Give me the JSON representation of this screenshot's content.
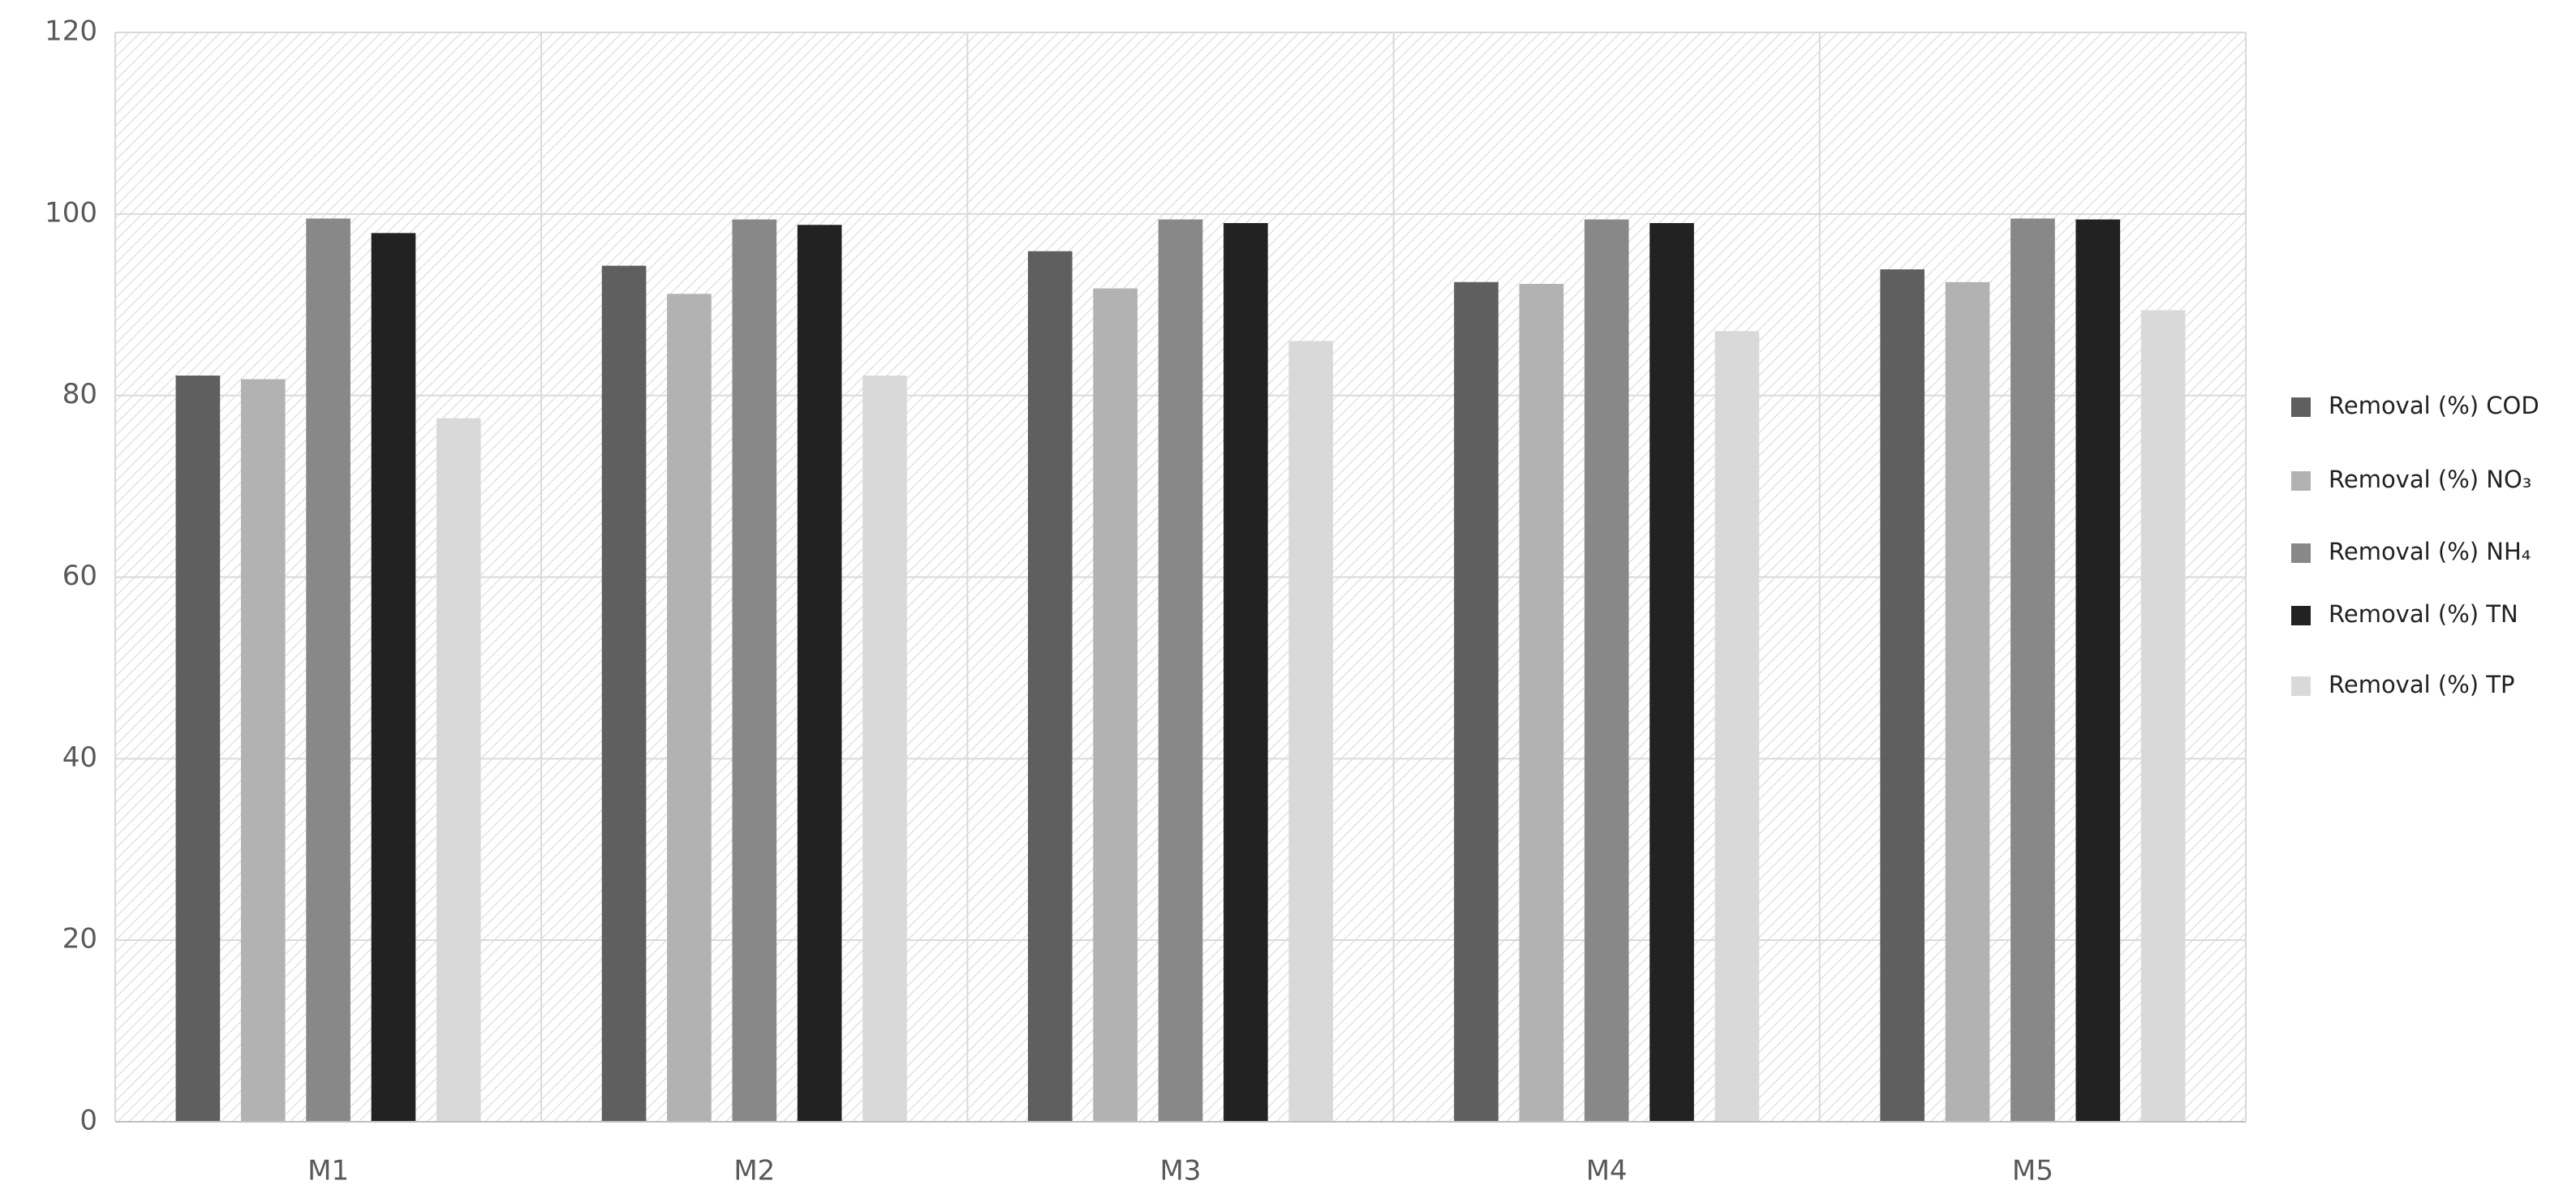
{
  "chart_data": {
    "type": "bar",
    "categories": [
      "M1",
      "M2",
      "M3",
      "M4",
      "M5"
    ],
    "series": [
      {
        "name": "Removal (%) COD",
        "color": "#5f5f5f",
        "values": [
          82.2,
          94.3,
          95.9,
          92.5,
          93.9
        ]
      },
      {
        "name": "Removal (%) NO₃",
        "color": "#b2b2b2",
        "values": [
          81.8,
          91.2,
          91.8,
          92.3,
          92.5
        ]
      },
      {
        "name": "Removal (%) NH₄",
        "color": "#888888",
        "values": [
          99.5,
          99.4,
          99.4,
          99.4,
          99.5
        ]
      },
      {
        "name": "Removal (%) TN",
        "color": "#222222",
        "values": [
          97.9,
          98.8,
          99.0,
          99.0,
          99.4
        ]
      },
      {
        "name": "Removal (%) TP",
        "color": "#d9d9d9",
        "values": [
          77.5,
          82.2,
          86.0,
          87.1,
          89.4
        ]
      }
    ],
    "ylim": [
      0,
      120
    ],
    "yticks": [
      0,
      20,
      40,
      60,
      80,
      100,
      120
    ],
    "grid": true,
    "legend": "right"
  }
}
